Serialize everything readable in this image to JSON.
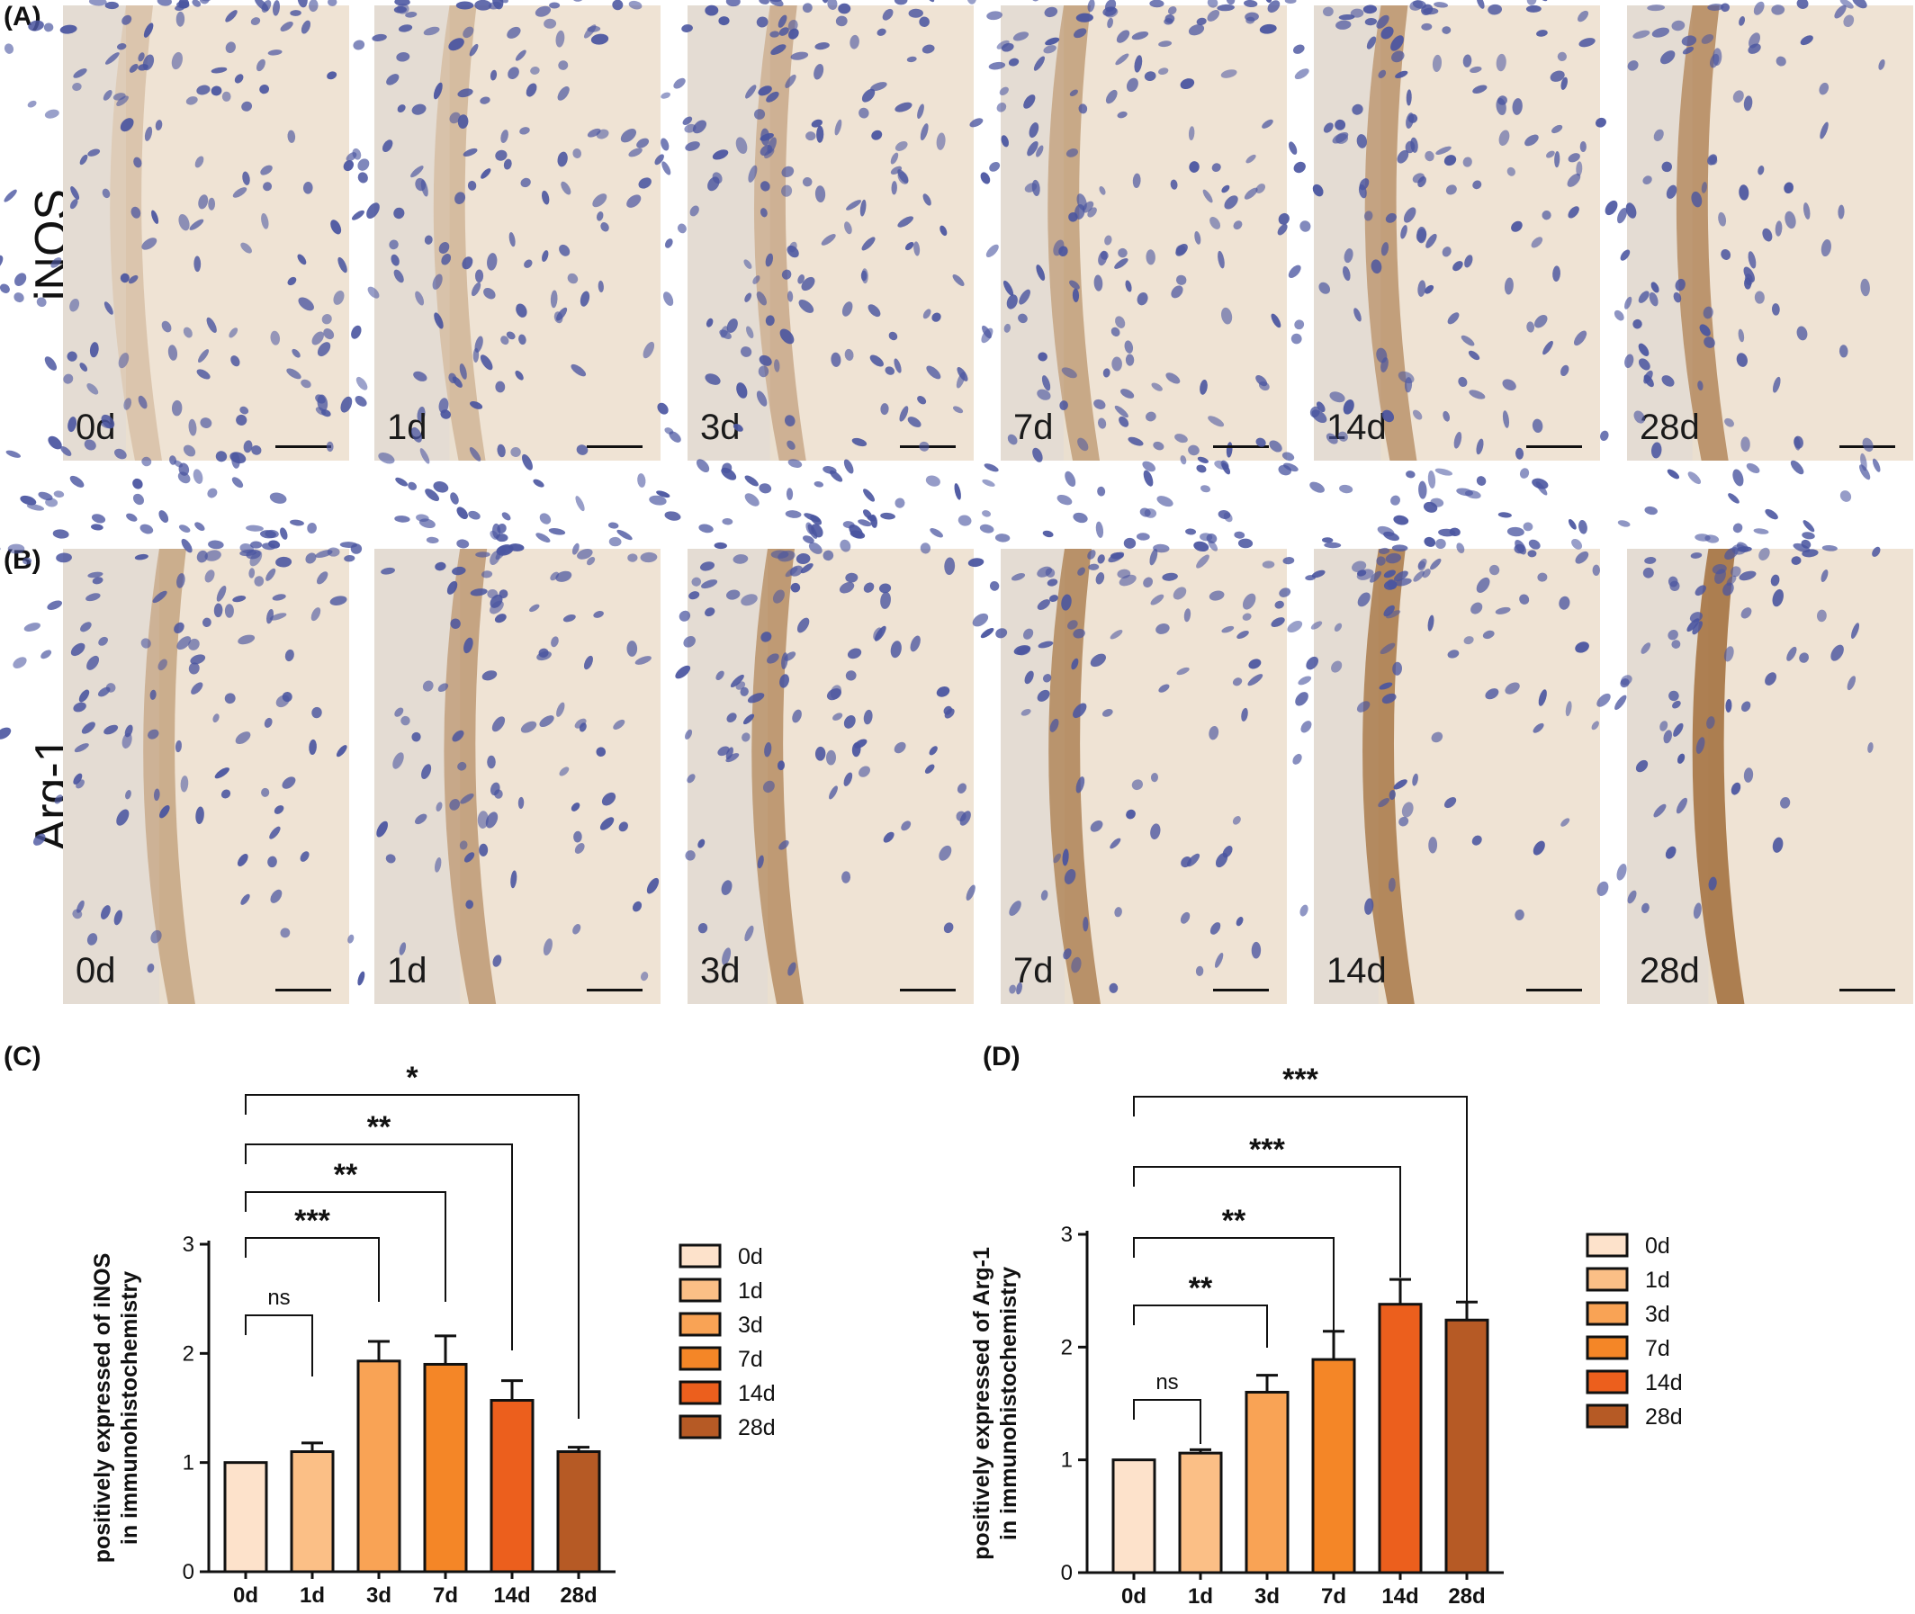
{
  "panels": {
    "A": {
      "letter": "(A)",
      "row_label": "iNOS"
    },
    "B": {
      "letter": "(B)",
      "row_label": "Arg-1"
    },
    "C": {
      "letter": "(C)"
    },
    "D": {
      "letter": "(D)"
    }
  },
  "micrographs": {
    "time_points": [
      "0d",
      "1d",
      "3d",
      "7d",
      "14d",
      "28d"
    ],
    "colors": {
      "background": "#f3ece3",
      "tissue": "#ede0cd",
      "nuclei": "#4a55a0",
      "stain": "#a06c38"
    }
  },
  "chart_data": [
    {
      "id": "C",
      "type": "bar",
      "categories": [
        "0d",
        "1d",
        "3d",
        "7d",
        "14d",
        "28d"
      ],
      "values": [
        1.0,
        1.1,
        1.93,
        1.9,
        1.57,
        1.1
      ],
      "errors": [
        0.0,
        0.08,
        0.18,
        0.26,
        0.18,
        0.04
      ],
      "ylabel_line1": "positively expressed of iNOS",
      "ylabel_line2": "in immunohistochemistry",
      "ylim": [
        0,
        3
      ],
      "yticks": [
        0,
        1,
        2,
        3
      ],
      "colors": [
        "#fde2cb",
        "#fbbf86",
        "#f9a355",
        "#f48627",
        "#ec5f1d",
        "#b65a25"
      ],
      "legend": [
        "0d",
        "1d",
        "3d",
        "7d",
        "14d",
        "28d"
      ],
      "legend_position": "right",
      "significance": [
        {
          "from": "0d",
          "to": "1d",
          "label": "ns"
        },
        {
          "from": "0d",
          "to": "3d",
          "label": "***"
        },
        {
          "from": "0d",
          "to": "7d",
          "label": "**"
        },
        {
          "from": "0d",
          "to": "14d",
          "label": "**"
        },
        {
          "from": "0d",
          "to": "28d",
          "label": "*"
        }
      ]
    },
    {
      "id": "D",
      "type": "bar",
      "categories": [
        "0d",
        "1d",
        "3d",
        "7d",
        "14d",
        "28d"
      ],
      "values": [
        1.0,
        1.06,
        1.6,
        1.89,
        2.38,
        2.24
      ],
      "errors": [
        0.0,
        0.03,
        0.15,
        0.25,
        0.22,
        0.16
      ],
      "ylabel_line1": "positively expressed of Arg-1",
      "ylabel_line2": "in immunohistochemistry",
      "ylim": [
        0,
        3
      ],
      "yticks": [
        0,
        1,
        2,
        3
      ],
      "colors": [
        "#fde2cb",
        "#fbbf86",
        "#f9a355",
        "#f48627",
        "#ec5f1d",
        "#b65a25"
      ],
      "legend": [
        "0d",
        "1d",
        "3d",
        "7d",
        "14d",
        "28d"
      ],
      "legend_position": "right",
      "significance": [
        {
          "from": "0d",
          "to": "1d",
          "label": "ns"
        },
        {
          "from": "0d",
          "to": "3d",
          "label": "**"
        },
        {
          "from": "0d",
          "to": "7d",
          "label": "**"
        },
        {
          "from": "0d",
          "to": "14d",
          "label": "***"
        },
        {
          "from": "0d",
          "to": "28d",
          "label": "***"
        }
      ]
    }
  ]
}
